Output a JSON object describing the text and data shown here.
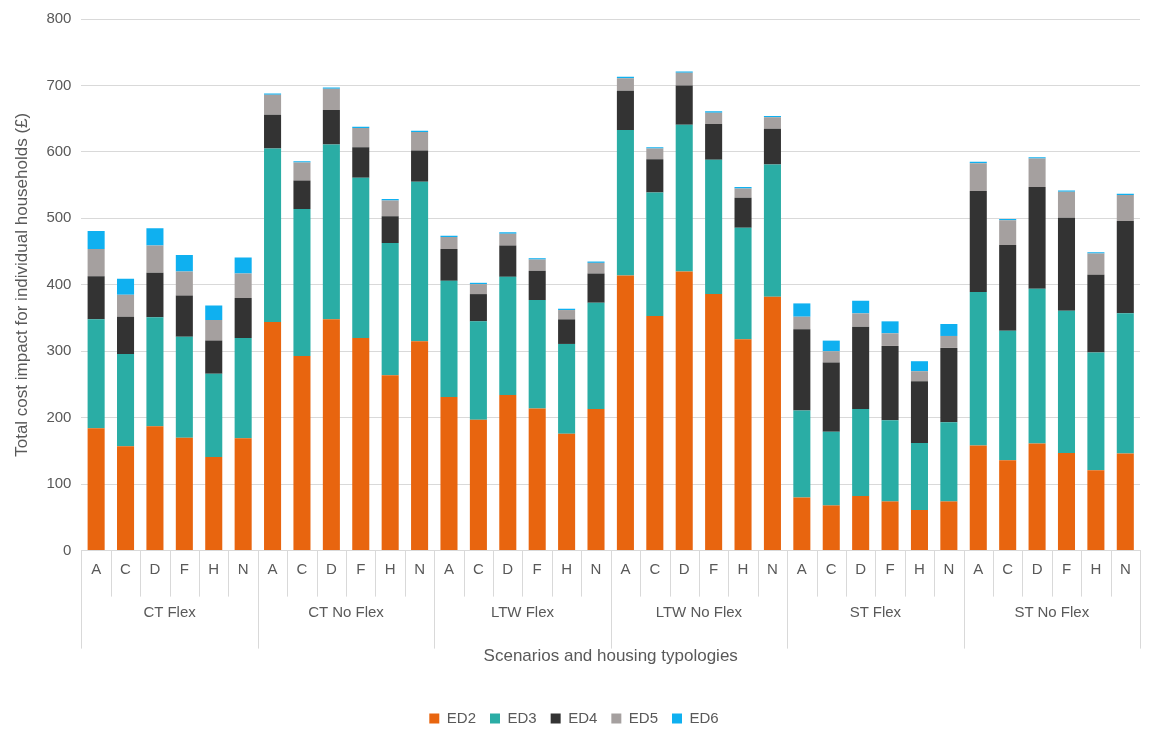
{
  "chart_data": {
    "type": "bar",
    "stacked": true,
    "ylabel": "Total cost impact for individual households (£)",
    "xlabel": "Scenarios and housing typologies",
    "categories": [
      "A",
      "C",
      "D",
      "F",
      "H",
      "N",
      "A",
      "C",
      "D",
      "F",
      "H",
      "N",
      "A",
      "C",
      "D",
      "F",
      "H",
      "N",
      "A",
      "C",
      "D",
      "F",
      "H",
      "N",
      "A",
      "C",
      "D",
      "F",
      "H",
      "N",
      "A",
      "C",
      "D",
      "F",
      "H",
      "N"
    ],
    "annotations": [
      "CT Flex",
      "CT No Flex",
      "LTW Flex",
      "LTW No Flex",
      "ST Flex",
      "ST No Flex"
    ],
    "ylim": [
      0,
      800
    ],
    "yticks": [
      0,
      100,
      200,
      300,
      400,
      500,
      600,
      700,
      800
    ],
    "grid": "y",
    "legend": "bottom",
    "series": [
      {
        "name": "ED2",
        "color": "#e8650f",
        "values": [
          184,
          157,
          187,
          170,
          141,
          169,
          344,
          293,
          348,
          320,
          264,
          315,
          231,
          197,
          234,
          214,
          176,
          213,
          414,
          353,
          420,
          386,
          318,
          382,
          80,
          68,
          82,
          74,
          61,
          74,
          158,
          136,
          161,
          147,
          121,
          146
        ]
      },
      {
        "name": "ED3",
        "color": "#2aada5",
        "values": [
          164,
          139,
          164,
          152,
          125,
          151,
          261,
          221,
          263,
          241,
          199,
          240,
          175,
          148,
          178,
          163,
          135,
          160,
          219,
          186,
          221,
          202,
          168,
          199,
          131,
          111,
          131,
          122,
          101,
          119,
          231,
          195,
          233,
          214,
          177,
          211
        ]
      },
      {
        "name": "ED4",
        "color": "#333333",
        "values": [
          65,
          56,
          67,
          62,
          50,
          60,
          51,
          43,
          52,
          46,
          40,
          47,
          48,
          41,
          47,
          44,
          37,
          44,
          59,
          50,
          59,
          54,
          45,
          54,
          122,
          104,
          124,
          112,
          93,
          112,
          152,
          129,
          153,
          140,
          117,
          139
        ]
      },
      {
        "name": "ED5",
        "color": "#a5a09f",
        "values": [
          41,
          33,
          41,
          36,
          31,
          37,
          30,
          27,
          32,
          29,
          24,
          28,
          18,
          15,
          18,
          17,
          14,
          16,
          19,
          16,
          19,
          17,
          14,
          17,
          19,
          17,
          20,
          19,
          15,
          18,
          42,
          37,
          43,
          39,
          32,
          39
        ]
      },
      {
        "name": "ED6",
        "color": "#0fb0f0",
        "values": [
          27,
          24,
          26,
          25,
          22,
          24,
          2,
          2,
          2,
          2,
          2,
          2,
          2,
          2,
          2,
          2,
          2,
          2,
          2,
          2,
          2,
          2,
          2,
          2,
          20,
          16,
          19,
          18,
          15,
          18,
          2,
          2,
          2,
          2,
          2,
          2
        ]
      }
    ]
  }
}
